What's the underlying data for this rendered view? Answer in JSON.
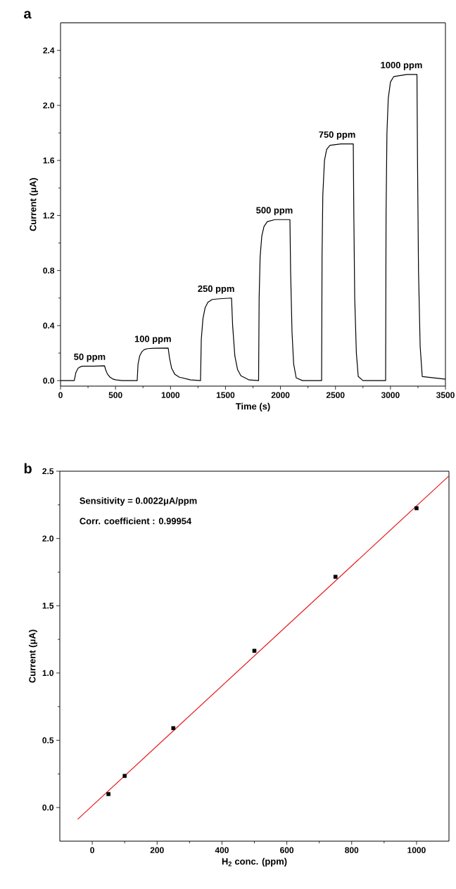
{
  "chart_data": [
    {
      "type": "line",
      "title": "a",
      "xlabel": "Time (s)",
      "ylabel": "Current (μA)",
      "color": "#000000",
      "x": [
        0,
        125,
        140,
        160,
        180,
        200,
        250,
        300,
        400,
        410,
        425,
        450,
        475,
        505,
        560,
        697,
        705,
        720,
        740,
        760,
        790,
        850,
        979,
        990,
        1010,
        1040,
        1080,
        1183,
        1273,
        1280,
        1295,
        1315,
        1340,
        1380,
        1450,
        1555,
        1565,
        1585,
        1610,
        1640,
        1715,
        1801,
        1806,
        1815,
        1830,
        1850,
        1880,
        1950,
        2086,
        2092,
        2105,
        2120,
        2143,
        2200,
        2374,
        2378,
        2385,
        2400,
        2420,
        2450,
        2550,
        2662,
        2667,
        2675,
        2690,
        2707,
        2750,
        2956,
        2960,
        2968,
        2980,
        3000,
        3030,
        3150,
        3241,
        3246,
        3255,
        3270,
        3289,
        3500
      ],
      "values": [
        0,
        0,
        0.06,
        0.09,
        0.1,
        0.105,
        0.105,
        0.105,
        0.108,
        0.08,
        0.05,
        0.025,
        0.012,
        0.005,
        0,
        0,
        0.12,
        0.18,
        0.21,
        0.225,
        0.232,
        0.235,
        0.237,
        0.17,
        0.09,
        0.045,
        0.025,
        0.005,
        0,
        0.3,
        0.45,
        0.53,
        0.57,
        0.59,
        0.595,
        0.6,
        0.4,
        0.18,
        0.08,
        0.035,
        0.005,
        0,
        0.6,
        0.9,
        1.05,
        1.12,
        1.155,
        1.17,
        1.17,
        0.8,
        0.35,
        0.12,
        0.02,
        0,
        0,
        0.9,
        1.35,
        1.6,
        1.68,
        1.71,
        1.72,
        1.72,
        1.2,
        0.6,
        0.2,
        0.03,
        0,
        0,
        1.2,
        1.8,
        2.05,
        2.17,
        2.21,
        2.225,
        2.225,
        1.6,
        0.8,
        0.25,
        0.03,
        0.01
      ],
      "xlim": [
        0,
        3500
      ],
      "ylim": [
        -0.04,
        2.6
      ],
      "xticks": [
        0,
        500,
        1000,
        1500,
        2000,
        2500,
        3000,
        3500
      ],
      "yticks": [
        {
          "value": 0,
          "label": "0.0"
        },
        {
          "value": 0.4,
          "label": "0.4"
        },
        {
          "value": 0.8,
          "label": "0.8"
        },
        {
          "value": 1.2,
          "label": "1.2"
        },
        {
          "value": 1.6,
          "label": "1.6"
        },
        {
          "value": 2.0,
          "label": "2.0"
        },
        {
          "value": 2.4,
          "label": "2.4"
        }
      ],
      "annotations": [
        {
          "text": "50 ppm",
          "x": 265,
          "y": 0.105
        },
        {
          "text": "100 ppm",
          "x": 840,
          "y": 0.235
        },
        {
          "text": "250 ppm",
          "x": 1415,
          "y": 0.6
        },
        {
          "text": "500 ppm",
          "x": 1945,
          "y": 1.17
        },
        {
          "text": "750 ppm",
          "x": 2515,
          "y": 1.72
        },
        {
          "text": "1000 ppm",
          "x": 3100,
          "y": 2.225
        }
      ]
    },
    {
      "type": "scatter",
      "title": "b",
      "xlabel": "H$_{2}$ conc. (ppm)",
      "ylabel": "Current (μA)",
      "series": [
        {
          "type": "scatter",
          "marker": "square",
          "color": "#000000",
          "x": [
            50,
            100,
            250,
            500,
            750,
            1000
          ],
          "values": [
            0.1,
            0.235,
            0.59,
            1.165,
            1.715,
            2.225
          ]
        },
        {
          "type": "line",
          "color": "#e41a1c",
          "x": [
            -45,
            1100
          ],
          "values": [
            -0.087,
            2.465
          ]
        }
      ],
      "xlim": [
        -100,
        1100
      ],
      "ylim": [
        -0.25,
        2.5
      ],
      "xticks": [
        0,
        200,
        400,
        600,
        800,
        1000
      ],
      "yticks": [
        {
          "value": 0,
          "label": "0.0"
        },
        {
          "value": 0.5,
          "label": "0.5"
        },
        {
          "value": 1.0,
          "label": "1.0"
        },
        {
          "value": 1.5,
          "label": "1.5"
        },
        {
          "value": 2.0,
          "label": "2.0"
        },
        {
          "value": 2.5,
          "label": "2.5"
        }
      ],
      "annotations": [
        "Sensitivity = 0.0022μA/ppm",
        "Corr. coefficient : 0.99954"
      ]
    }
  ]
}
